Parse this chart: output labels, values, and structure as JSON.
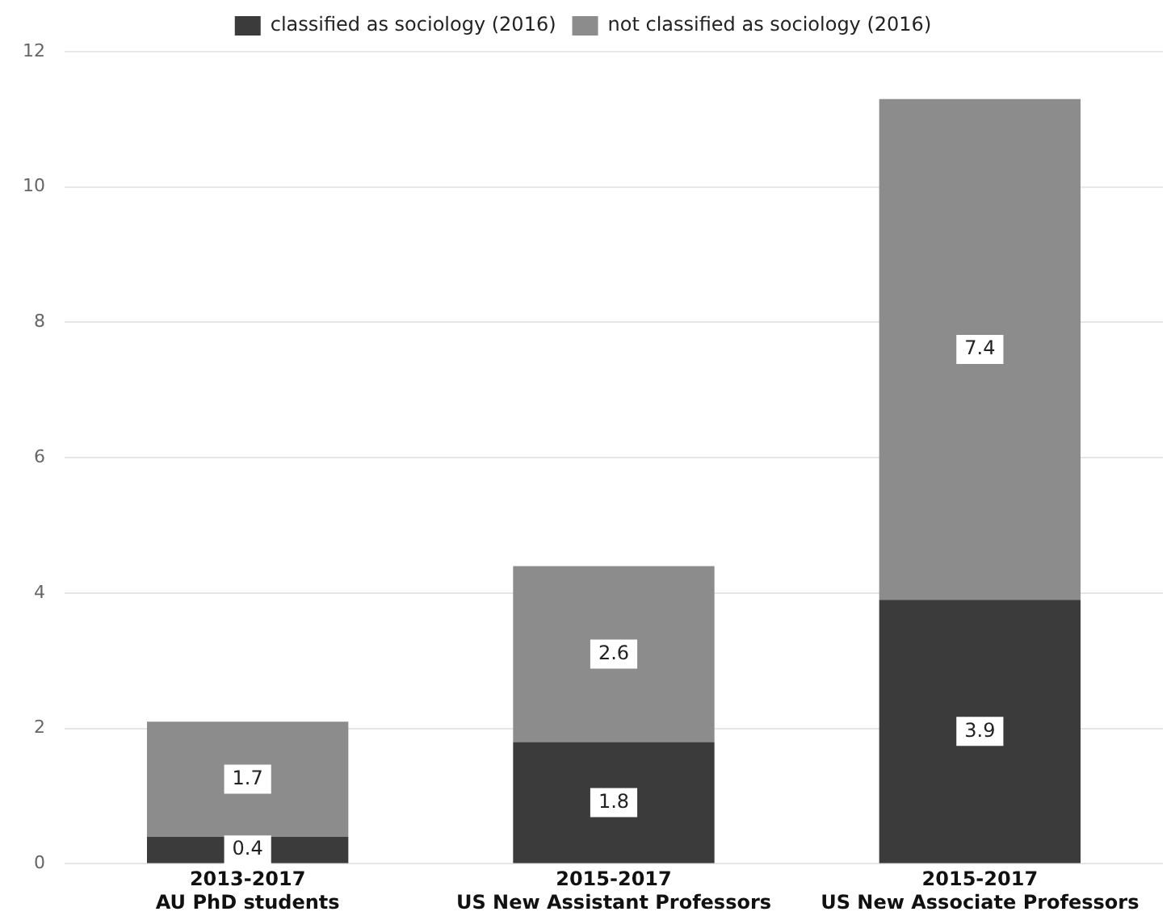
{
  "chart_data": {
    "type": "bar",
    "stacked": true,
    "categories": [
      "2013-2017\nAU PhD students",
      "2015-2017\nUS New Assistant Professors",
      "2015-2017\nUS New Associate Professors"
    ],
    "series": [
      {
        "name": "classified as sociology (2016)",
        "color": "#3b3b3b",
        "values": [
          0.4,
          1.8,
          3.9
        ]
      },
      {
        "name": "not classified as sociology (2016)",
        "color": "#8c8c8c",
        "values": [
          1.7,
          2.6,
          7.4
        ]
      }
    ],
    "ylim": [
      0,
      12
    ],
    "yticks": [
      0,
      2,
      4,
      6,
      8,
      10,
      12
    ],
    "grid": "y",
    "legend": "top",
    "data_labels": true
  }
}
